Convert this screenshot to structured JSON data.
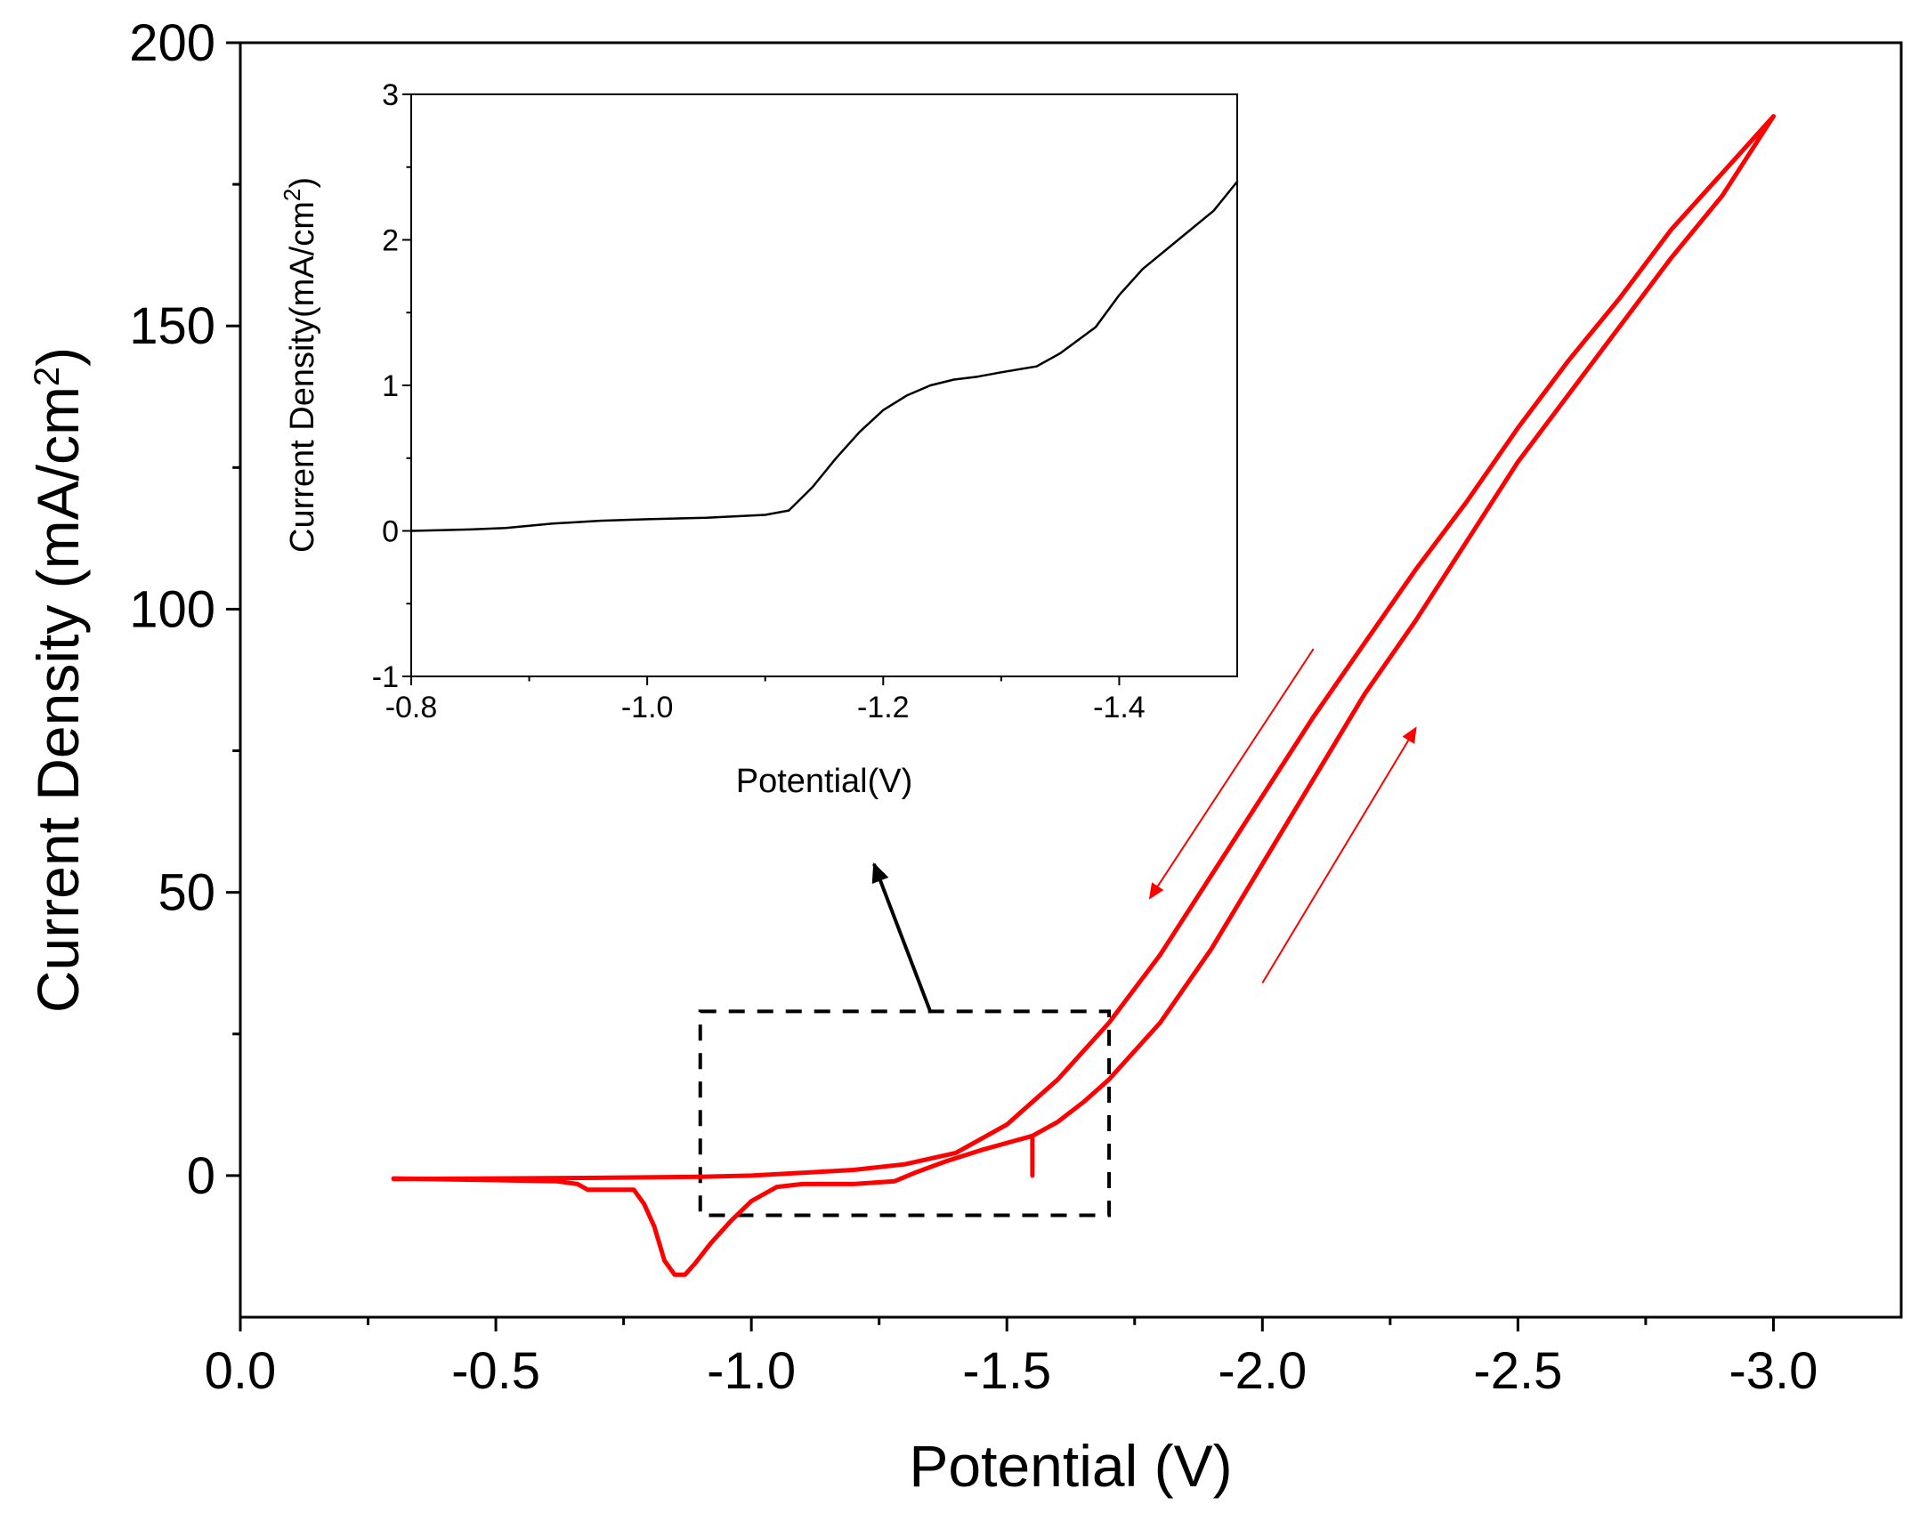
{
  "chart_data": [
    {
      "id": "main",
      "type": "line",
      "xlabel": "Potential (V)",
      "ylabel": {
        "base": "Current Density (mA/cm",
        "sup": "2",
        "close": ")"
      },
      "xlim": [
        0.0,
        -3.25
      ],
      "ylim": [
        -25,
        200
      ],
      "xticks": [
        0.0,
        -0.5,
        -1.0,
        -1.5,
        -2.0,
        -2.5,
        -3.0
      ],
      "xtick_labels": [
        "0.0",
        "-0.5",
        "-1.0",
        "-1.5",
        "-2.0",
        "-2.5",
        "-3.0"
      ],
      "yticks": [
        0,
        50,
        100,
        150,
        200
      ],
      "ytick_labels": [
        "0",
        "50",
        "100",
        "150",
        "200"
      ],
      "grid": false,
      "series": [
        {
          "color": "#ff0000",
          "x": [
            -0.3,
            -0.5,
            -0.62,
            -0.66,
            -0.68,
            -0.72,
            -0.77,
            -0.79,
            -0.81,
            -0.83,
            -0.85,
            -0.87,
            -0.89,
            -0.92,
            -0.96,
            -1.0,
            -1.05,
            -1.1,
            -1.2,
            -1.28,
            -1.32,
            -1.38,
            -1.45,
            -1.55,
            -1.55,
            -1.55,
            -1.6,
            -1.65,
            -1.7,
            -1.8,
            -1.9,
            -2.0,
            -2.1,
            -2.2,
            -2.3,
            -2.4,
            -2.5,
            -2.6,
            -2.7,
            -2.8,
            -2.9,
            -3.0
          ],
          "y": [
            -0.5,
            -0.8,
            -1.0,
            -1.5,
            -2.5,
            -2.5,
            -2.5,
            -5.0,
            -9.0,
            -15.0,
            -17.5,
            -17.5,
            -15.5,
            -12.0,
            -8.0,
            -4.5,
            -2.0,
            -1.5,
            -1.5,
            -1.0,
            0.5,
            2.5,
            4.5,
            7.0,
            0.0,
            7.0,
            9.5,
            13.0,
            17.0,
            27.0,
            40.0,
            55.0,
            70.0,
            85.0,
            98.0,
            112.0,
            126.0,
            138.0,
            150.0,
            162.0,
            173.0,
            187.0
          ]
        },
        {
          "color": "#ff0000",
          "x": [
            -3.0,
            -2.9,
            -2.8,
            -2.7,
            -2.6,
            -2.5,
            -2.4,
            -2.3,
            -2.2,
            -2.1,
            -2.0,
            -1.9,
            -1.8,
            -1.7,
            -1.6,
            -1.5,
            -1.4,
            -1.3,
            -1.2,
            -1.1,
            -1.0,
            -0.9,
            -0.7,
            -0.5,
            -0.3
          ],
          "y": [
            187.0,
            177.0,
            167.0,
            155.0,
            144.0,
            132.0,
            119.0,
            107.0,
            94.0,
            81.0,
            67.0,
            53.0,
            39.0,
            27.0,
            17.0,
            9.0,
            4.0,
            2.0,
            1.0,
            0.5,
            0.0,
            -0.2,
            -0.4,
            -0.5,
            -0.6
          ]
        }
      ],
      "annotations": {
        "box": {
          "x": [
            -0.9,
            -1.7
          ],
          "y": [
            -7,
            29
          ]
        },
        "zoom_arrow": {
          "from": [
            -1.35,
            29
          ],
          "to": [
            -1.24,
            55
          ],
          "color": "#000000"
        },
        "scan_arrows": [
          {
            "from": [
              -2.1,
              93
            ],
            "to": [
              -1.78,
              49
            ],
            "color": "#ff0000"
          },
          {
            "from": [
              -2.0,
              34
            ],
            "to": [
              -2.3,
              79
            ],
            "color": "#ff0000"
          }
        ]
      }
    },
    {
      "id": "inset",
      "type": "line",
      "xlabel": "Potential(V)",
      "ylabel": {
        "base": "Current Density(mA/cm",
        "sup": "2",
        "close": ")"
      },
      "xlim": [
        -0.8,
        -1.5
      ],
      "ylim": [
        -1,
        3
      ],
      "xticks": [
        -0.8,
        -1.0,
        -1.2,
        -1.4
      ],
      "xtick_labels": [
        "-0.8",
        "-1.0",
        "-1.2",
        "-1.4"
      ],
      "yticks": [
        -1,
        0,
        1,
        2,
        3
      ],
      "ytick_labels": [
        "-1",
        "0",
        "1",
        "2",
        "3"
      ],
      "grid": false,
      "series": [
        {
          "color": "#000000",
          "x": [
            -0.8,
            -0.85,
            -0.88,
            -0.92,
            -0.96,
            -1.0,
            -1.05,
            -1.1,
            -1.12,
            -1.14,
            -1.16,
            -1.18,
            -1.2,
            -1.22,
            -1.24,
            -1.26,
            -1.28,
            -1.3,
            -1.33,
            -1.35,
            -1.38,
            -1.4,
            -1.42,
            -1.45,
            -1.48,
            -1.5
          ],
          "y": [
            0.0,
            0.01,
            0.02,
            0.05,
            0.07,
            0.08,
            0.09,
            0.11,
            0.14,
            0.3,
            0.5,
            0.68,
            0.83,
            0.93,
            1.0,
            1.04,
            1.06,
            1.09,
            1.13,
            1.22,
            1.4,
            1.62,
            1.8,
            2.0,
            2.2,
            2.4
          ]
        }
      ]
    }
  ]
}
